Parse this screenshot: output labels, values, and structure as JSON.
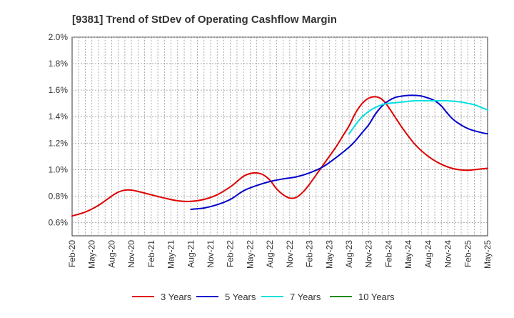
{
  "chart_data": {
    "type": "line",
    "title": "[9381]  Trend of StDev of Operating Cashflow Margin",
    "xlabel": "",
    "ylabel": "",
    "ylim": [
      0.5,
      2.0
    ],
    "yticks": [
      0.6,
      0.8,
      1.0,
      1.2,
      1.4,
      1.6,
      1.8,
      2.0
    ],
    "ytick_labels": [
      "0.6%",
      "0.8%",
      "1.0%",
      "1.2%",
      "1.4%",
      "1.6%",
      "1.8%",
      "2.0%"
    ],
    "x_range": [
      0,
      63
    ],
    "x_tick_positions": [
      0,
      3,
      6,
      9,
      12,
      15,
      18,
      21,
      24,
      27,
      30,
      33,
      36,
      39,
      42,
      45,
      48,
      51,
      54,
      57,
      60,
      63
    ],
    "x_tick_labels": [
      "Feb-20",
      "May-20",
      "Aug-20",
      "Nov-20",
      "Feb-21",
      "May-21",
      "Aug-21",
      "Nov-21",
      "Feb-22",
      "May-22",
      "Aug-22",
      "Nov-22",
      "Feb-23",
      "May-23",
      "Aug-23",
      "Nov-23",
      "Feb-24",
      "May-24",
      "Aug-24",
      "Nov-24",
      "Feb-25",
      "May-25"
    ],
    "grid": true,
    "legend_position": "bottom",
    "series": [
      {
        "name": "3 Years",
        "color": "#dd0000",
        "x": [
          0,
          2,
          4,
          6,
          7,
          8,
          9,
          10,
          12,
          14,
          16,
          18,
          20,
          22,
          24,
          25,
          26,
          27,
          28,
          29,
          30,
          31,
          32,
          33,
          34,
          35,
          36,
          38,
          40,
          41,
          42,
          43,
          44,
          45,
          46,
          47,
          48,
          50,
          52,
          54,
          56,
          58,
          60,
          62,
          63
        ],
        "values": [
          0.65,
          0.68,
          0.73,
          0.8,
          0.83,
          0.845,
          0.845,
          0.835,
          0.81,
          0.785,
          0.765,
          0.76,
          0.775,
          0.81,
          0.87,
          0.91,
          0.95,
          0.97,
          0.975,
          0.96,
          0.92,
          0.855,
          0.81,
          0.785,
          0.79,
          0.83,
          0.89,
          1.03,
          1.17,
          1.25,
          1.33,
          1.43,
          1.5,
          1.54,
          1.55,
          1.53,
          1.47,
          1.32,
          1.19,
          1.1,
          1.04,
          1.005,
          0.995,
          1.005,
          1.01
        ]
      },
      {
        "name": "5 Years",
        "color": "#0000cc",
        "x": [
          18,
          20,
          22,
          24,
          26,
          28,
          30,
          32,
          34,
          36,
          38,
          40,
          42,
          43,
          44,
          45,
          46,
          47,
          48,
          49,
          50,
          51,
          52,
          53,
          54,
          55,
          56,
          57,
          58,
          60,
          62,
          63
        ],
        "values": [
          0.7,
          0.71,
          0.735,
          0.775,
          0.84,
          0.88,
          0.91,
          0.93,
          0.945,
          0.975,
          1.02,
          1.09,
          1.17,
          1.22,
          1.28,
          1.34,
          1.42,
          1.48,
          1.52,
          1.545,
          1.555,
          1.56,
          1.56,
          1.555,
          1.54,
          1.52,
          1.48,
          1.42,
          1.37,
          1.31,
          1.28,
          1.27
        ]
      },
      {
        "name": "7 Years",
        "color": "#00e0e0",
        "x": [
          42,
          43,
          44,
          45,
          46,
          47,
          48,
          49,
          50,
          51,
          52,
          53,
          54,
          55,
          56,
          57,
          58,
          59,
          60,
          61,
          62,
          63
        ],
        "values": [
          1.27,
          1.34,
          1.4,
          1.44,
          1.47,
          1.49,
          1.5,
          1.505,
          1.51,
          1.515,
          1.52,
          1.52,
          1.52,
          1.52,
          1.52,
          1.52,
          1.515,
          1.51,
          1.5,
          1.49,
          1.47,
          1.45
        ]
      },
      {
        "name": "10 Years",
        "color": "#228B22",
        "x": [],
        "values": []
      }
    ]
  }
}
